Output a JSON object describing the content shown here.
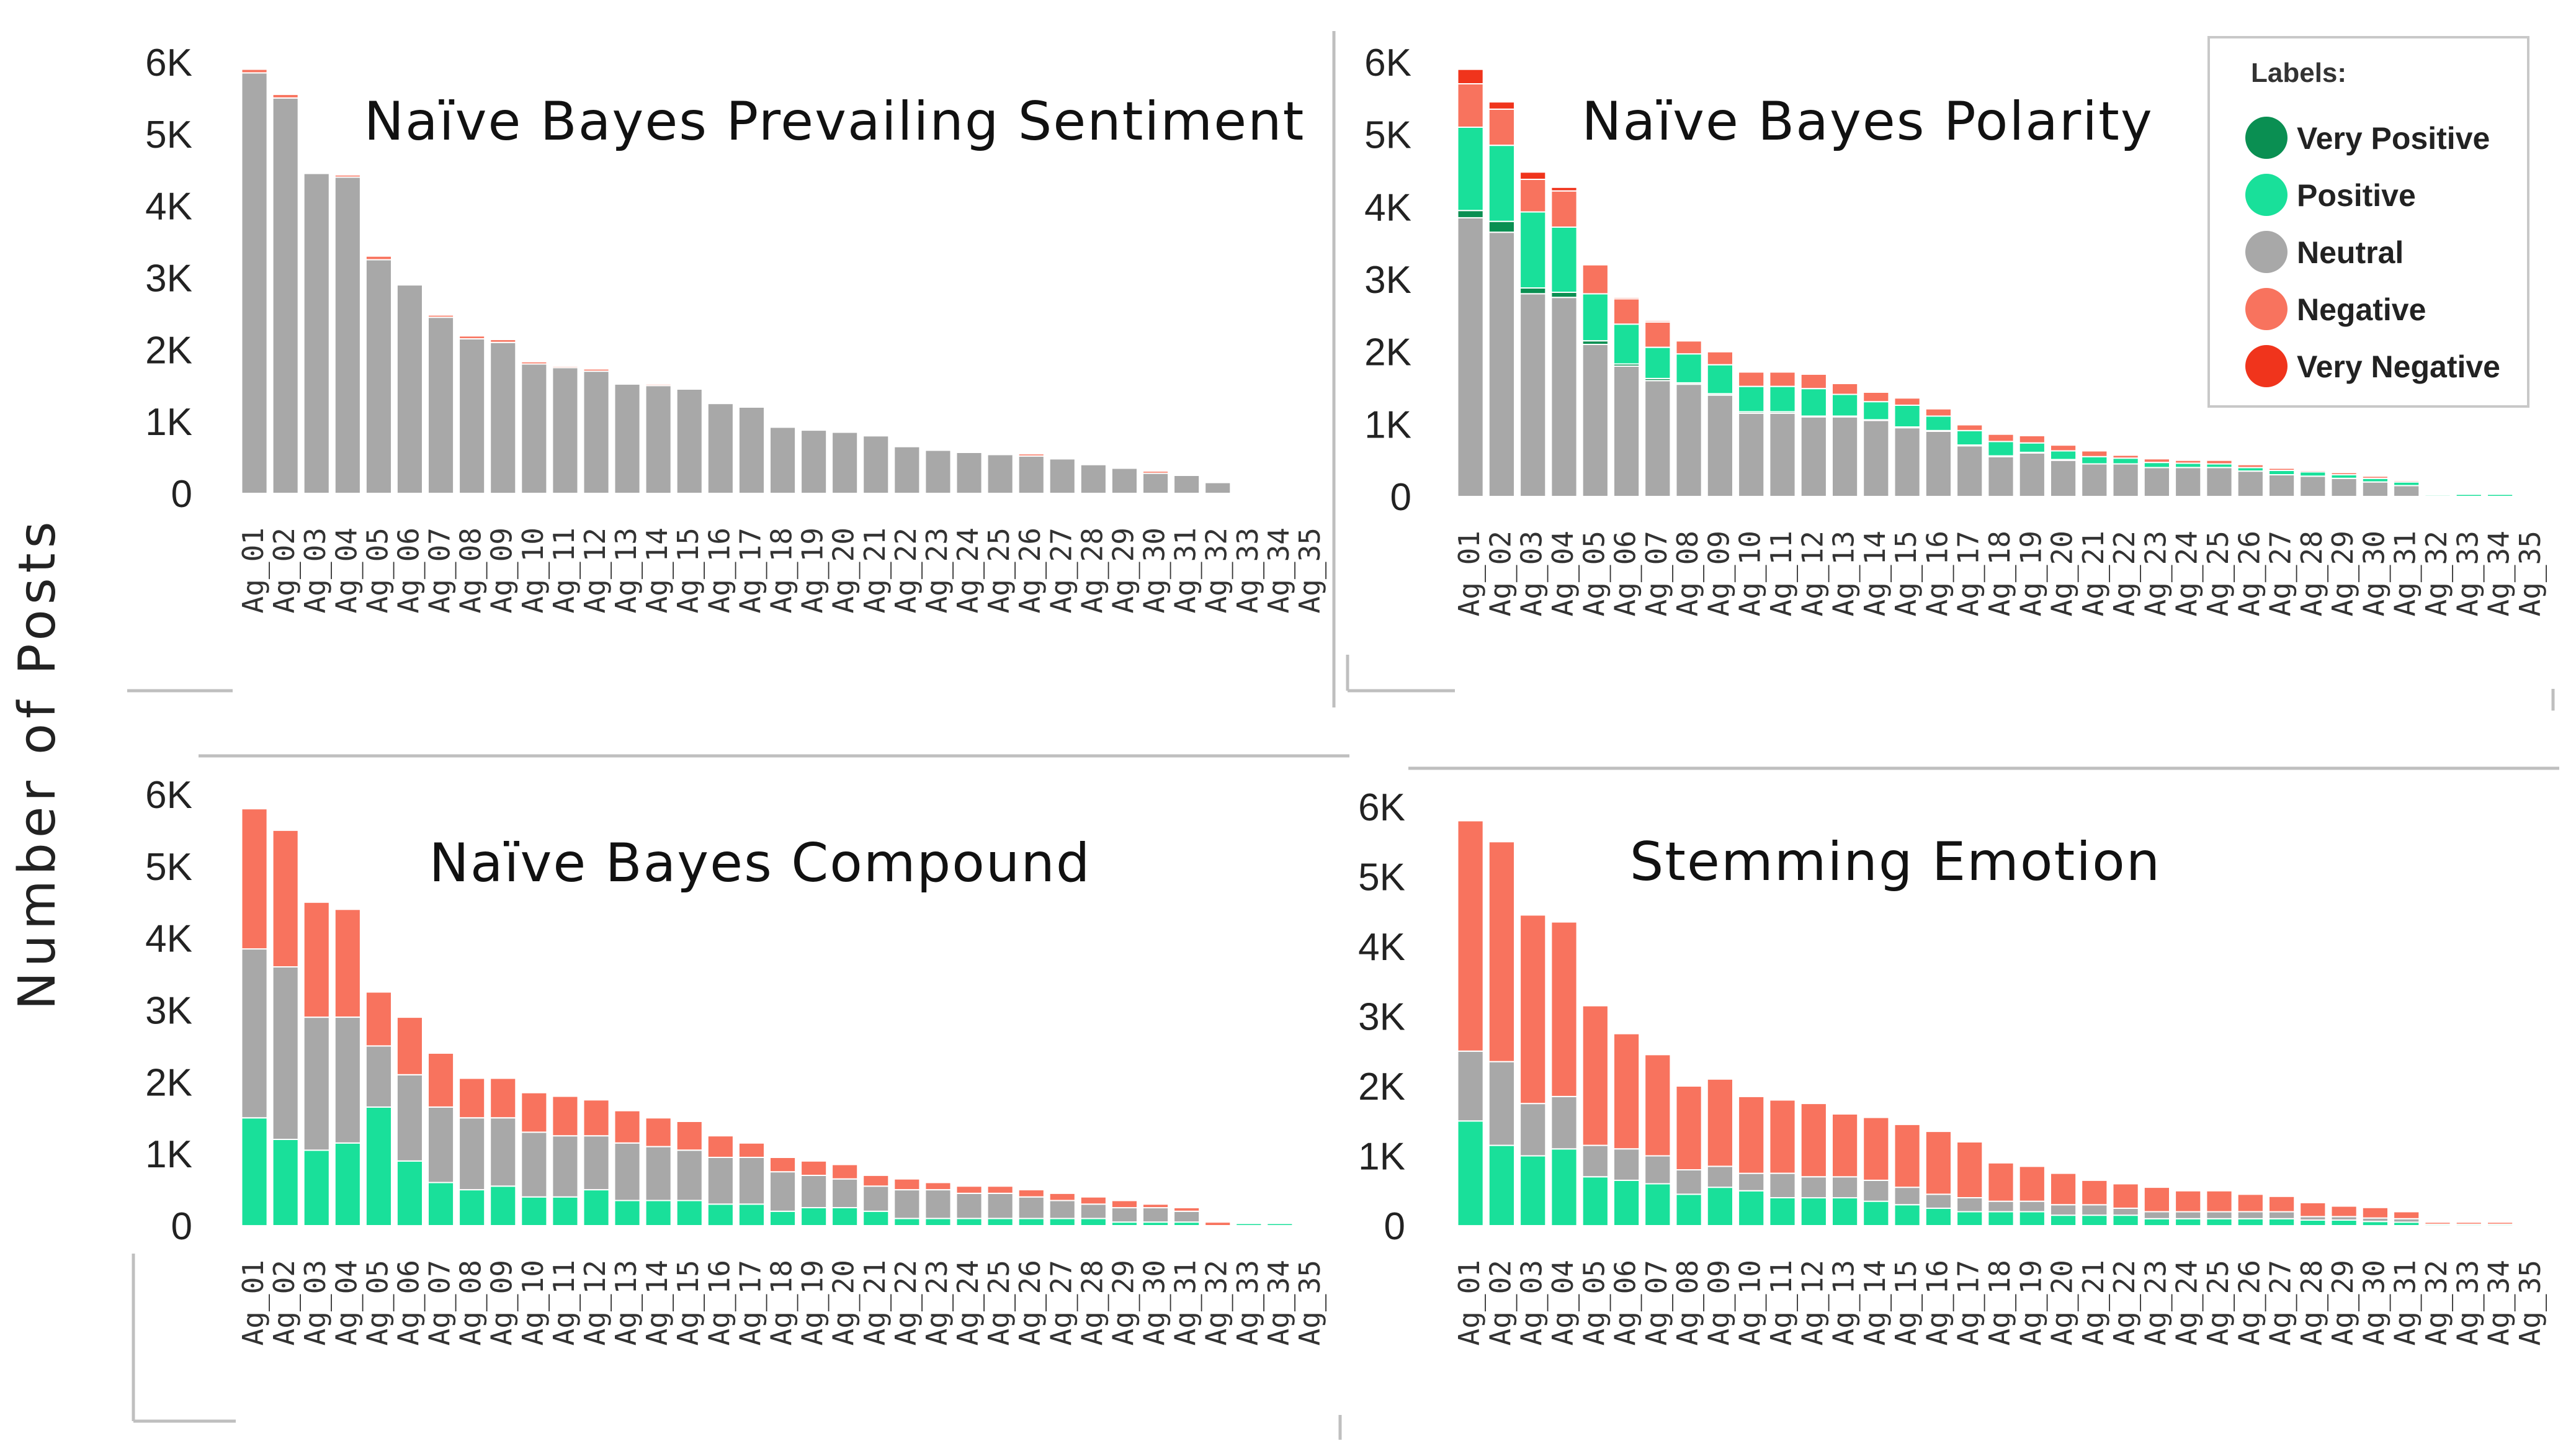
{
  "y_axis_label": "Number of Posts",
  "legend": {
    "title": "Labels:",
    "items": [
      {
        "label": "Very Positive",
        "color": "#0a8f52"
      },
      {
        "label": "Positive",
        "color": "#19e09a"
      },
      {
        "label": "Neutral",
        "color": "#a8a8a8"
      },
      {
        "label": "Negative",
        "color": "#f8735e"
      },
      {
        "label": "Very Negative",
        "color": "#f0341c"
      }
    ]
  },
  "chart_data": [
    {
      "type": "bar",
      "stacked": true,
      "title": "Naïve Bayes Prevailing Sentiment",
      "ylabel": "Number of Posts",
      "ylim": [
        0,
        6000
      ],
      "yticks": [
        "0",
        "1K",
        "2K",
        "3K",
        "4K",
        "5K",
        "6K"
      ],
      "categories": [
        "Ag_01",
        "Ag_02",
        "Ag_03",
        "Ag_04",
        "Ag_05",
        "Ag_06",
        "Ag_07",
        "Ag_08",
        "Ag_09",
        "Ag_10",
        "Ag_11",
        "Ag_12",
        "Ag_13",
        "Ag_14",
        "Ag_15",
        "Ag_16",
        "Ag_17",
        "Ag_18",
        "Ag_19",
        "Ag_20",
        "Ag_21",
        "Ag_22",
        "Ag_23",
        "Ag_24",
        "Ag_25",
        "Ag_26",
        "Ag_27",
        "Ag_28",
        "Ag_29",
        "Ag_30",
        "Ag_31",
        "Ag_32",
        "Ag_33",
        "Ag_34",
        "Ag_35"
      ],
      "series": [
        {
          "name": "Neutral",
          "values": [
            5850,
            5500,
            4450,
            4400,
            3250,
            2900,
            2450,
            2150,
            2100,
            1800,
            1750,
            1700,
            1520,
            1500,
            1450,
            1250,
            1200,
            920,
            880,
            850,
            800,
            650,
            600,
            570,
            540,
            520,
            480,
            400,
            350,
            280,
            250,
            150,
            0,
            0,
            0
          ]
        },
        {
          "name": "Negative",
          "values": [
            50,
            50,
            0,
            30,
            50,
            0,
            30,
            40,
            40,
            30,
            20,
            30,
            0,
            20,
            0,
            0,
            0,
            0,
            0,
            0,
            0,
            0,
            0,
            0,
            0,
            30,
            0,
            0,
            0,
            30,
            0,
            0,
            0,
            0,
            0
          ]
        }
      ]
    },
    {
      "type": "bar",
      "stacked": true,
      "title": "Naïve Bayes Polarity",
      "ylabel": "Number of Posts",
      "ylim": [
        0,
        6000
      ],
      "yticks": [
        "0",
        "1K",
        "2K",
        "3K",
        "4K",
        "5K",
        "6K"
      ],
      "categories": [
        "Ag_01",
        "Ag_02",
        "Ag_03",
        "Ag_04",
        "Ag_05",
        "Ag_06",
        "Ag_07",
        "Ag_08",
        "Ag_09",
        "Ag_10",
        "Ag_11",
        "Ag_12",
        "Ag_13",
        "Ag_14",
        "Ag_15",
        "Ag_16",
        "Ag_17",
        "Ag_18",
        "Ag_19",
        "Ag_20",
        "Ag_21",
        "Ag_22",
        "Ag_23",
        "Ag_24",
        "Ag_25",
        "Ag_26",
        "Ag_27",
        "Ag_28",
        "Ag_29",
        "Ag_30",
        "Ag_31",
        "Ag_32",
        "Ag_33",
        "Ag_34",
        "Ag_35"
      ],
      "series": [
        {
          "name": "Neutral",
          "values": [
            3850,
            3650,
            2800,
            2750,
            2100,
            1800,
            1600,
            1550,
            1400,
            1150,
            1150,
            1100,
            1100,
            1050,
            950,
            900,
            700,
            550,
            600,
            500,
            450,
            450,
            400,
            400,
            400,
            350,
            300,
            280,
            250,
            200,
            150,
            0,
            0,
            0,
            0
          ]
        },
        {
          "name": "Very Positive",
          "values": [
            100,
            150,
            80,
            70,
            50,
            30,
            30,
            20,
            20,
            20,
            20,
            10,
            10,
            10,
            10,
            10,
            10,
            10,
            10,
            10,
            0,
            0,
            0,
            0,
            0,
            0,
            0,
            0,
            0,
            0,
            0,
            0,
            0,
            0,
            0
          ]
        },
        {
          "name": "Positive",
          "values": [
            1150,
            1050,
            1050,
            900,
            650,
            550,
            430,
            400,
            400,
            350,
            350,
            380,
            300,
            250,
            300,
            200,
            200,
            200,
            130,
            120,
            100,
            80,
            70,
            60,
            50,
            50,
            60,
            60,
            50,
            50,
            50,
            20,
            30,
            30,
            0
          ]
        },
        {
          "name": "Negative",
          "values": [
            600,
            500,
            450,
            500,
            400,
            350,
            350,
            180,
            180,
            200,
            200,
            200,
            150,
            130,
            100,
            100,
            80,
            100,
            100,
            80,
            80,
            40,
            50,
            40,
            50,
            40,
            30,
            20,
            30,
            30,
            20,
            10,
            0,
            0,
            0
          ]
        },
        {
          "name": "Very Negative",
          "values": [
            200,
            100,
            100,
            50,
            0,
            20,
            20,
            10,
            10,
            10,
            10,
            10,
            10,
            10,
            0,
            0,
            0,
            0,
            0,
            0,
            0,
            0,
            0,
            0,
            0,
            0,
            0,
            0,
            0,
            0,
            0,
            0,
            0,
            0,
            0
          ]
        }
      ]
    },
    {
      "type": "bar",
      "stacked": true,
      "title": "Naïve Bayes Compound",
      "ylabel": "Number of Posts",
      "ylim": [
        0,
        6000
      ],
      "yticks": [
        "0",
        "1K",
        "2K",
        "3K",
        "4K",
        "5K",
        "6K"
      ],
      "categories": [
        "Ag_01",
        "Ag_02",
        "Ag_03",
        "Ag_04",
        "Ag_05",
        "Ag_06",
        "Ag_07",
        "Ag_08",
        "Ag_09",
        "Ag_10",
        "Ag_11",
        "Ag_12",
        "Ag_13",
        "Ag_14",
        "Ag_15",
        "Ag_16",
        "Ag_17",
        "Ag_18",
        "Ag_19",
        "Ag_20",
        "Ag_21",
        "Ag_22",
        "Ag_23",
        "Ag_24",
        "Ag_25",
        "Ag_26",
        "Ag_27",
        "Ag_28",
        "Ag_29",
        "Ag_30",
        "Ag_31",
        "Ag_32",
        "Ag_33",
        "Ag_34",
        "Ag_35"
      ],
      "series": [
        {
          "name": "Positive",
          "values": [
            1500,
            1200,
            1050,
            1150,
            1650,
            900,
            600,
            500,
            550,
            400,
            400,
            500,
            350,
            350,
            350,
            300,
            300,
            200,
            250,
            250,
            200,
            100,
            100,
            100,
            100,
            100,
            100,
            100,
            50,
            50,
            50,
            0,
            30,
            30,
            0
          ]
        },
        {
          "name": "Neutral",
          "values": [
            2350,
            2400,
            1850,
            1750,
            850,
            1200,
            1050,
            1000,
            950,
            900,
            850,
            750,
            800,
            750,
            700,
            650,
            650,
            550,
            450,
            400,
            350,
            400,
            400,
            350,
            350,
            300,
            250,
            200,
            200,
            200,
            150,
            0,
            0,
            0,
            0
          ]
        },
        {
          "name": "Negative",
          "values": [
            1950,
            1900,
            1600,
            1500,
            750,
            800,
            750,
            550,
            550,
            550,
            550,
            500,
            450,
            400,
            400,
            300,
            200,
            200,
            200,
            200,
            150,
            150,
            100,
            100,
            100,
            100,
            100,
            100,
            100,
            50,
            50,
            50,
            0,
            0,
            0
          ]
        }
      ]
    },
    {
      "type": "bar",
      "stacked": true,
      "title": "Stemming Emotion",
      "ylabel": "Number of Posts",
      "ylim": [
        0,
        6000
      ],
      "yticks": [
        "0",
        "1K",
        "2K",
        "3K",
        "4K",
        "5K",
        "6K"
      ],
      "categories": [
        "Ag_01",
        "Ag_02",
        "Ag_03",
        "Ag_04",
        "Ag_05",
        "Ag_06",
        "Ag_07",
        "Ag_08",
        "Ag_09",
        "Ag_10",
        "Ag_11",
        "Ag_12",
        "Ag_13",
        "Ag_14",
        "Ag_15",
        "Ag_16",
        "Ag_17",
        "Ag_18",
        "Ag_19",
        "Ag_20",
        "Ag_21",
        "Ag_22",
        "Ag_23",
        "Ag_24",
        "Ag_25",
        "Ag_26",
        "Ag_27",
        "Ag_28",
        "Ag_29",
        "Ag_30",
        "Ag_31",
        "Ag_32",
        "Ag_33",
        "Ag_34",
        "Ag_35"
      ],
      "series": [
        {
          "name": "Positive",
          "values": [
            1500,
            1150,
            1000,
            1100,
            700,
            650,
            600,
            450,
            550,
            500,
            400,
            400,
            400,
            350,
            300,
            250,
            200,
            200,
            200,
            150,
            150,
            150,
            100,
            100,
            100,
            100,
            100,
            80,
            80,
            60,
            50,
            20,
            20,
            20,
            0
          ]
        },
        {
          "name": "Neutral",
          "values": [
            1000,
            1200,
            750,
            750,
            450,
            450,
            400,
            350,
            300,
            250,
            350,
            300,
            300,
            300,
            250,
            200,
            200,
            150,
            150,
            150,
            150,
            100,
            100,
            100,
            100,
            100,
            100,
            50,
            50,
            50,
            50,
            0,
            0,
            0,
            0
          ]
        },
        {
          "name": "Negative",
          "values": [
            3300,
            3150,
            2700,
            2500,
            2000,
            1650,
            1450,
            1200,
            1250,
            1100,
            1050,
            1050,
            900,
            900,
            900,
            900,
            800,
            550,
            500,
            450,
            350,
            350,
            350,
            300,
            300,
            250,
            220,
            200,
            150,
            150,
            100,
            30,
            30,
            30,
            0
          ]
        }
      ]
    }
  ]
}
